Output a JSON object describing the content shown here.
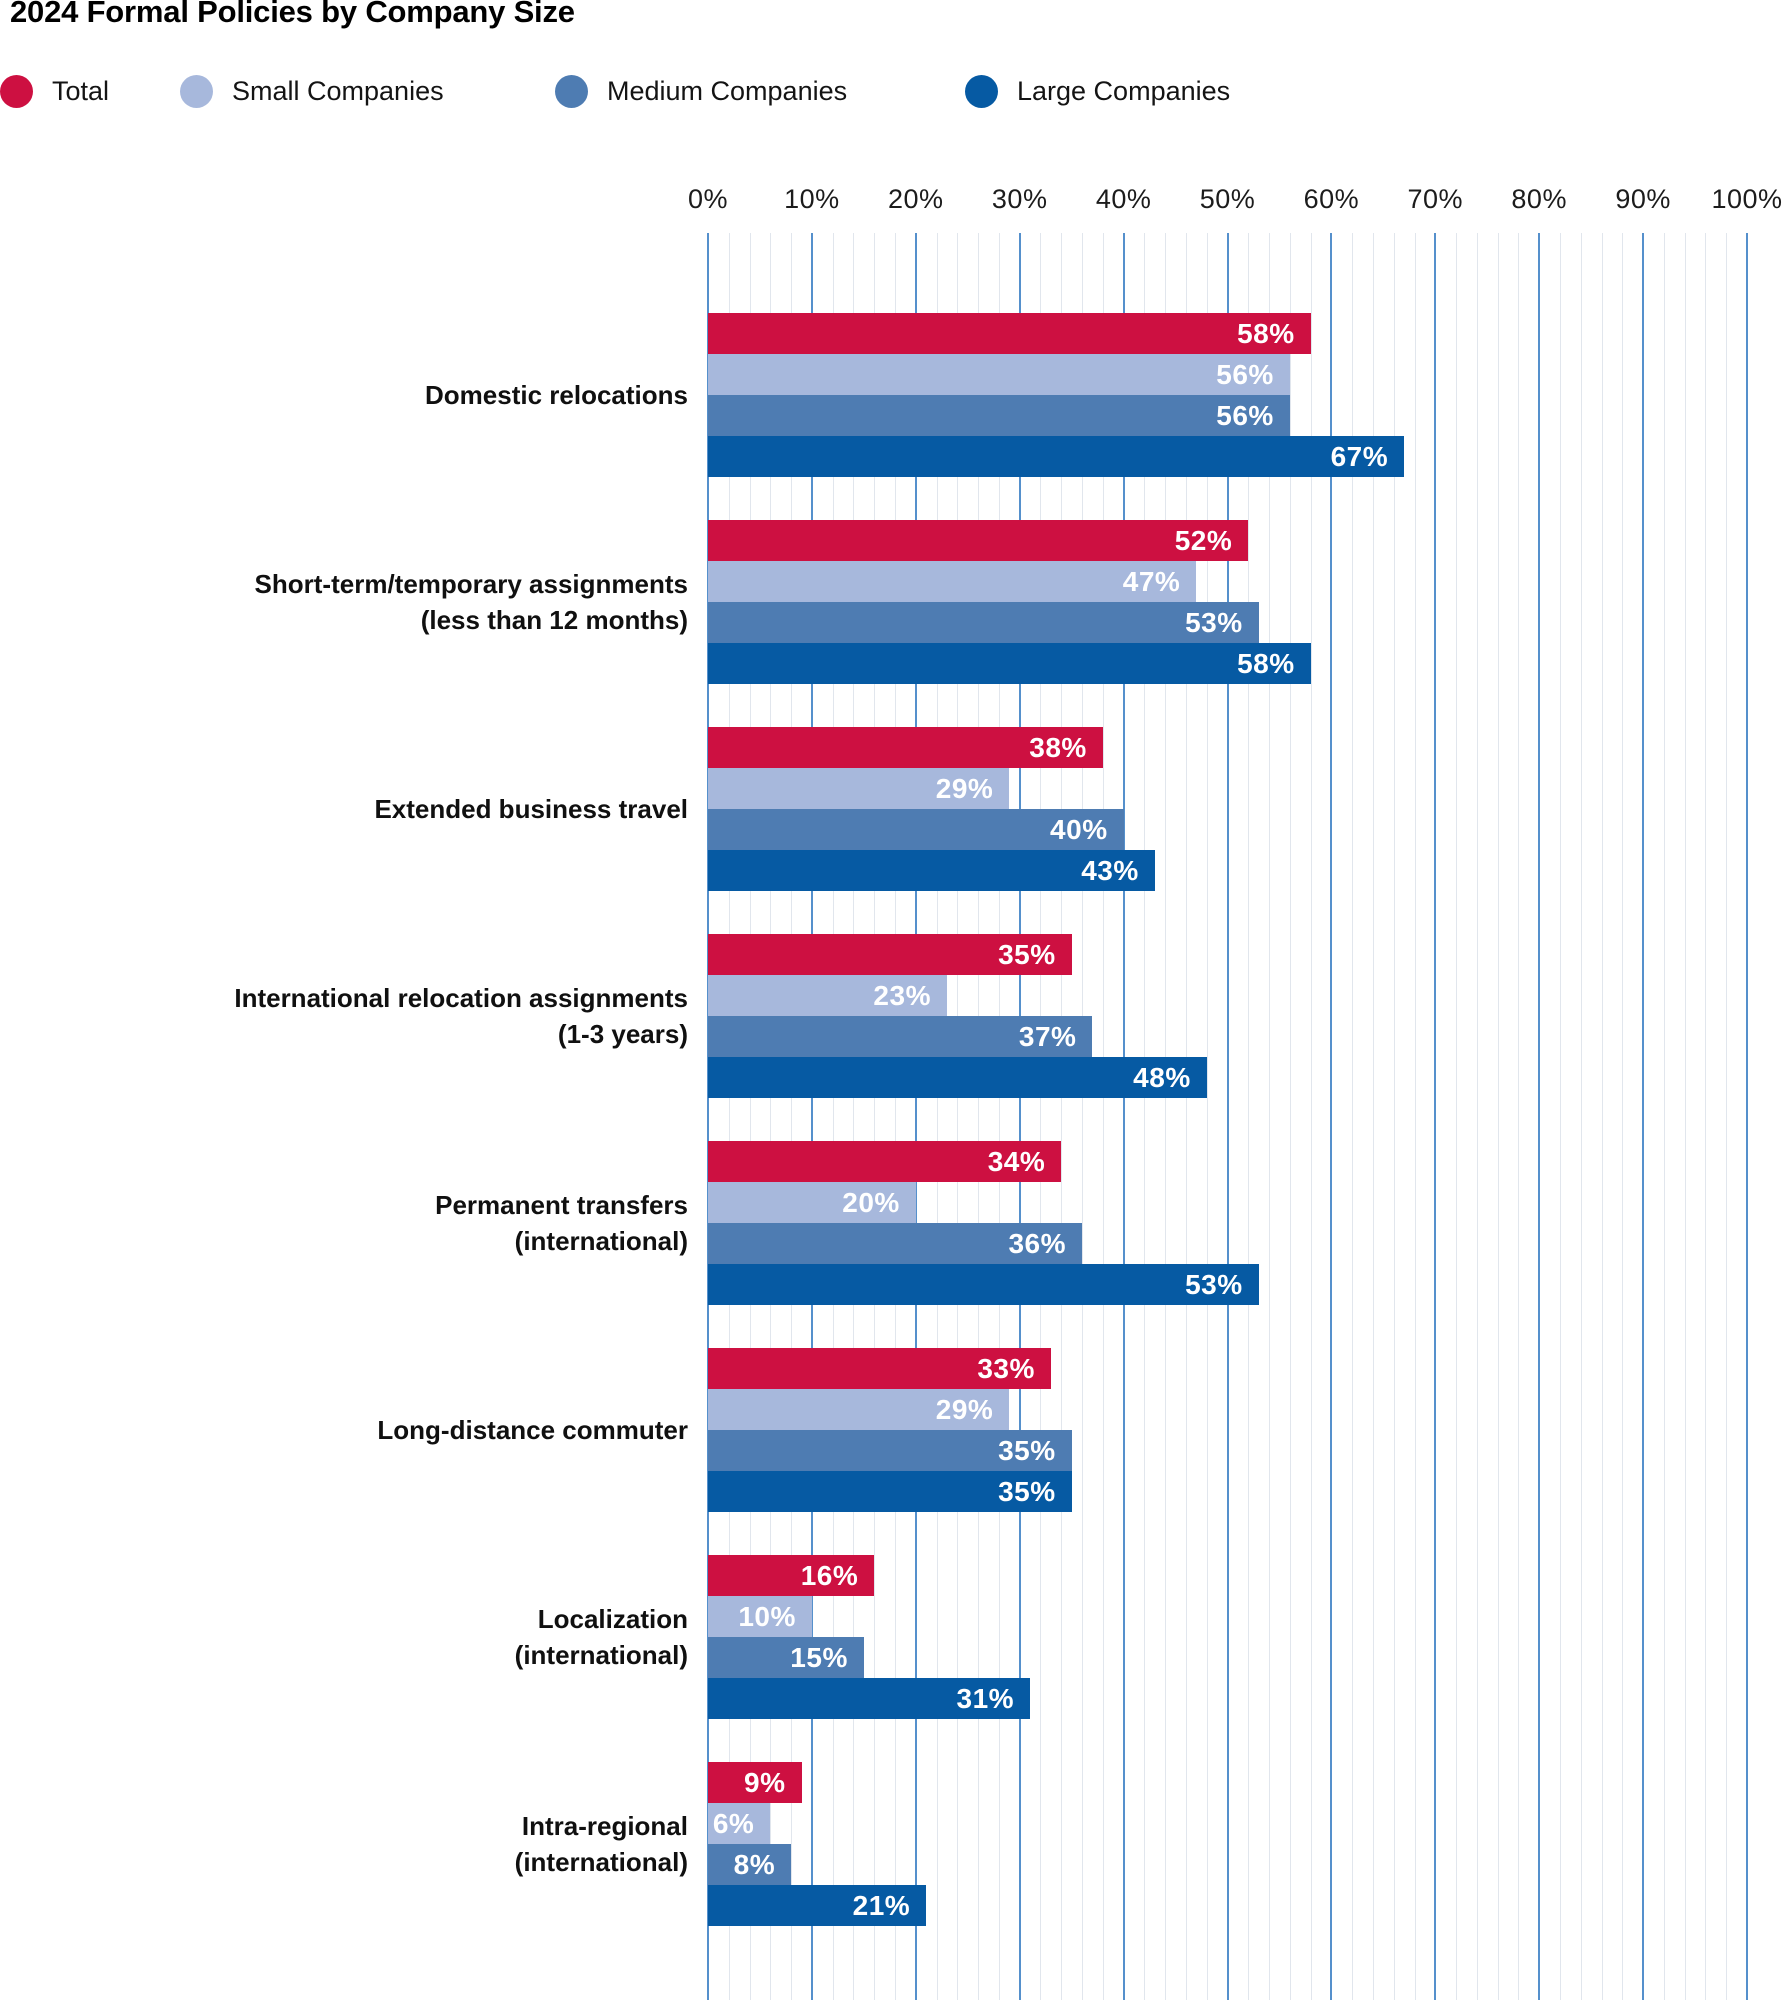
{
  "title": "2024 Formal Policies by Company Size",
  "legend": {
    "items": [
      {
        "label": "Total",
        "color": "#cd1041"
      },
      {
        "label": "Small Companies",
        "color": "#a7b8dc"
      },
      {
        "label": "Medium Companies",
        "color": "#4e7cb2"
      },
      {
        "label": "Large Companies",
        "color": "#065aa3"
      }
    ]
  },
  "axis": {
    "tick_labels": [
      "0%",
      "10%",
      "20%",
      "30%",
      "40%",
      "50%",
      "60%",
      "70%",
      "80%",
      "90%",
      "100%"
    ],
    "min": 0,
    "max": 100,
    "major_step": 10,
    "minor_step": 2
  },
  "colors": {
    "grid_major": "#5590cc",
    "grid_minor": "#e1e6ed",
    "value_label": "#ffffff",
    "text": "#141414"
  },
  "chart_data": {
    "type": "bar",
    "orientation": "horizontal",
    "title": "2024 Formal Policies by Company Size",
    "xlim": [
      0,
      100
    ],
    "grid": true,
    "legend_position": "top",
    "value_label_format": "{value}%",
    "categories": [
      [
        "Domestic relocations"
      ],
      [
        "Short-term/temporary assignments",
        "(less than 12 months)"
      ],
      [
        "Extended business travel"
      ],
      [
        "International relocation assignments",
        "(1-3 years)"
      ],
      [
        "Permanent transfers",
        "(international)"
      ],
      [
        "Long-distance commuter"
      ],
      [
        "Localization",
        "(international)"
      ],
      [
        "Intra-regional",
        "(international)"
      ]
    ],
    "series": [
      {
        "name": "Total",
        "color": "#cd1041",
        "values": [
          58,
          52,
          38,
          35,
          34,
          33,
          16,
          9
        ]
      },
      {
        "name": "Small Companies",
        "color": "#a7b8dc",
        "values": [
          56,
          47,
          29,
          23,
          20,
          29,
          10,
          6
        ]
      },
      {
        "name": "Medium Companies",
        "color": "#4e7cb2",
        "values": [
          56,
          53,
          40,
          37,
          36,
          35,
          15,
          8
        ]
      },
      {
        "name": "Large Companies",
        "color": "#065aa3",
        "values": [
          67,
          58,
          43,
          48,
          53,
          35,
          31,
          21
        ]
      }
    ]
  }
}
